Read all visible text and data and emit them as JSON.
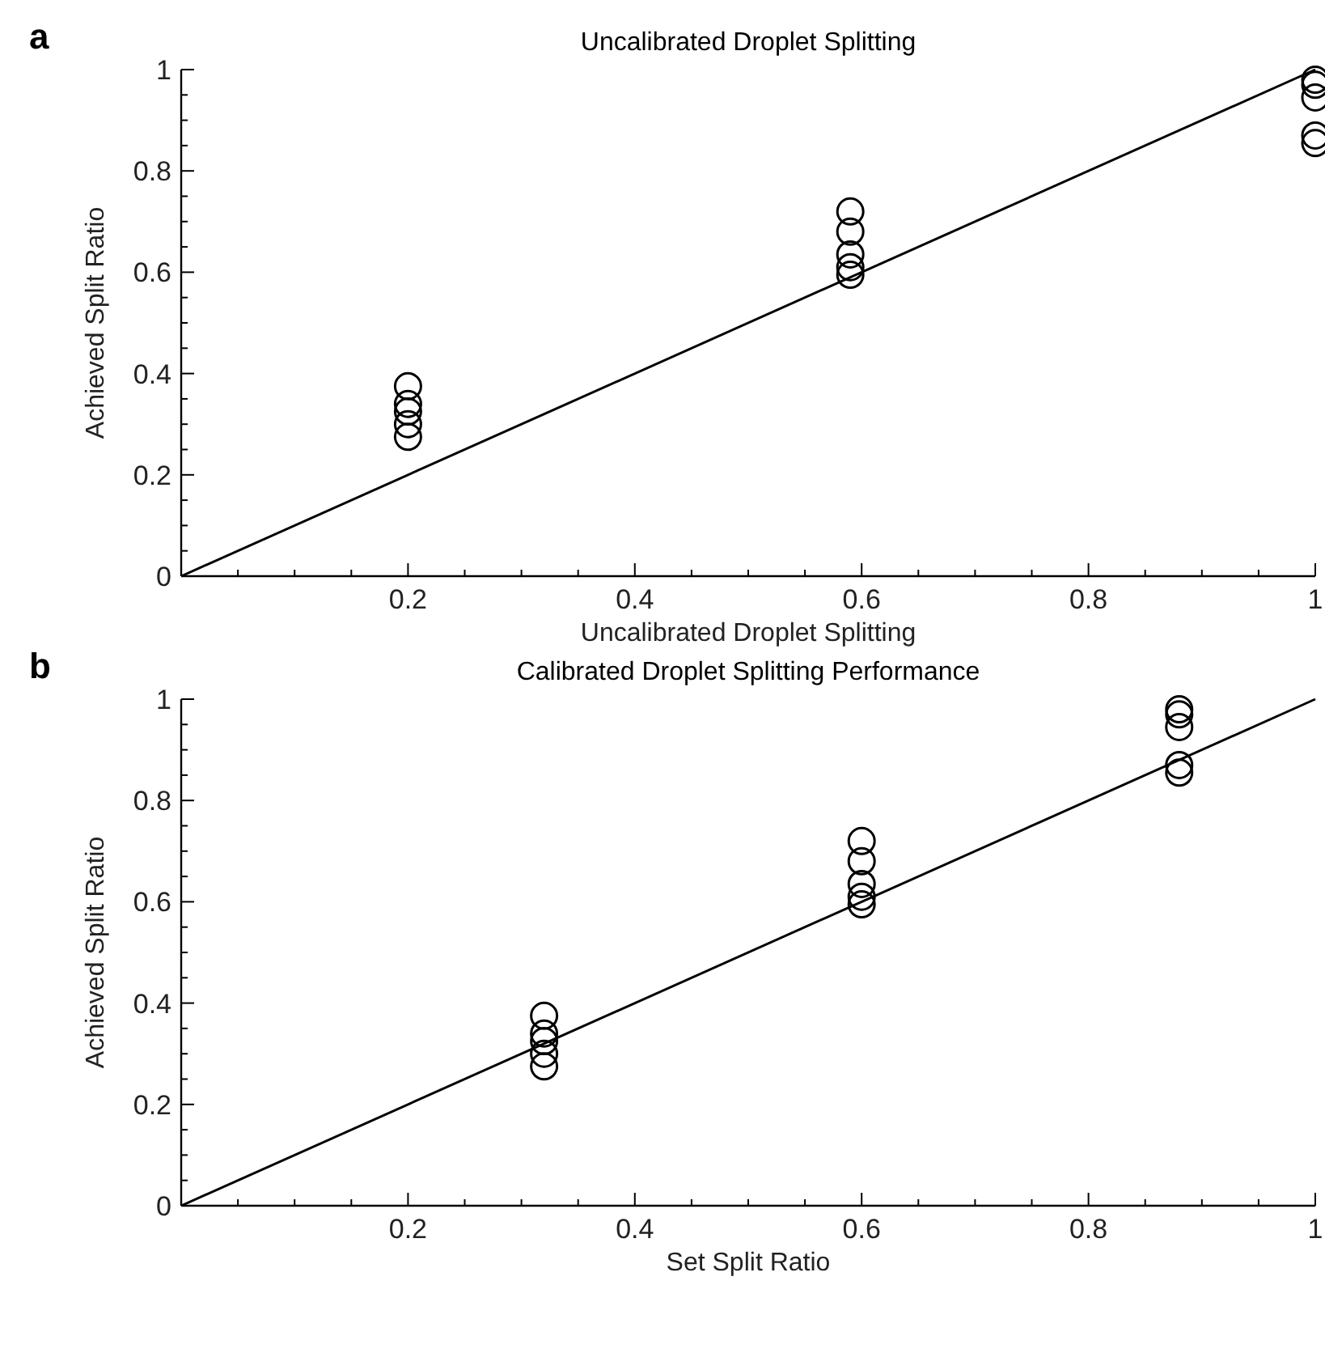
{
  "chart_data": [
    {
      "type": "scatter",
      "title": "Uncalibrated Droplet Splitting",
      "xlabel": "Uncalibrated Droplet Splitting",
      "ylabel": "Achieved Split Ratio",
      "annotations": [
        "a"
      ],
      "grid": false,
      "xlim": [
        0,
        1
      ],
      "ylim": [
        0,
        1
      ],
      "xticks": [
        {
          "value": 0.05,
          "label": null
        },
        {
          "value": 0.1,
          "label": null
        },
        {
          "value": 0.15,
          "label": null
        },
        0.2,
        {
          "value": 0.25,
          "label": null
        },
        {
          "value": 0.3,
          "label": null
        },
        {
          "value": 0.35,
          "label": null
        },
        0.4,
        {
          "value": 0.45,
          "label": null
        },
        {
          "value": 0.5,
          "label": null
        },
        {
          "value": 0.55,
          "label": null
        },
        0.6,
        {
          "value": 0.65,
          "label": null
        },
        {
          "value": 0.7,
          "label": null
        },
        {
          "value": 0.75,
          "label": null
        },
        0.8,
        {
          "value": 0.85,
          "label": null
        },
        {
          "value": 0.9,
          "label": null
        },
        {
          "value": 0.95,
          "label": null
        },
        1
      ],
      "yticks": [
        0,
        {
          "value": 0.05,
          "label": null
        },
        {
          "value": 0.1,
          "label": null
        },
        {
          "value": 0.15,
          "label": null
        },
        0.2,
        {
          "value": 0.25,
          "label": null
        },
        {
          "value": 0.3,
          "label": null
        },
        {
          "value": 0.35,
          "label": null
        },
        0.4,
        {
          "value": 0.45,
          "label": null
        },
        {
          "value": 0.5,
          "label": null
        },
        {
          "value": 0.55,
          "label": null
        },
        0.6,
        {
          "value": 0.65,
          "label": null
        },
        {
          "value": 0.7,
          "label": null
        },
        {
          "value": 0.75,
          "label": null
        },
        0.8,
        {
          "value": 0.85,
          "label": null
        },
        {
          "value": 0.9,
          "label": null
        },
        {
          "value": 0.95,
          "label": null
        },
        1
      ],
      "series": [
        {
          "type": "scatter",
          "marker": "circle",
          "color": "#000000",
          "x": [
            0.2,
            0.2,
            0.2,
            0.2,
            0.2,
            0.59,
            0.59,
            0.59,
            0.59,
            0.59,
            1,
            1,
            1,
            1,
            1
          ],
          "values": [
            0.375,
            0.34,
            0.325,
            0.3,
            0.275,
            0.72,
            0.68,
            0.635,
            0.61,
            0.595,
            0.98,
            0.97,
            0.945,
            0.87,
            0.855
          ]
        },
        {
          "type": "line",
          "color": "#000000",
          "x": [
            0,
            1
          ],
          "values": [
            0,
            1
          ]
        }
      ]
    },
    {
      "type": "scatter",
      "title": "Calibrated Droplet Splitting Performance",
      "xlabel": "Set Split Ratio",
      "ylabel": "Achieved Split Ratio",
      "annotations": [
        "b"
      ],
      "grid": false,
      "xlim": [
        0,
        1
      ],
      "ylim": [
        0,
        1
      ],
      "xticks": [
        {
          "value": 0.05,
          "label": null
        },
        {
          "value": 0.1,
          "label": null
        },
        {
          "value": 0.15,
          "label": null
        },
        0.2,
        {
          "value": 0.25,
          "label": null
        },
        {
          "value": 0.3,
          "label": null
        },
        {
          "value": 0.35,
          "label": null
        },
        0.4,
        {
          "value": 0.45,
          "label": null
        },
        {
          "value": 0.5,
          "label": null
        },
        {
          "value": 0.55,
          "label": null
        },
        0.6,
        {
          "value": 0.65,
          "label": null
        },
        {
          "value": 0.7,
          "label": null
        },
        {
          "value": 0.75,
          "label": null
        },
        0.8,
        {
          "value": 0.85,
          "label": null
        },
        {
          "value": 0.9,
          "label": null
        },
        {
          "value": 0.95,
          "label": null
        },
        1
      ],
      "yticks": [
        0,
        {
          "value": 0.05,
          "label": null
        },
        {
          "value": 0.1,
          "label": null
        },
        {
          "value": 0.15,
          "label": null
        },
        0.2,
        {
          "value": 0.25,
          "label": null
        },
        {
          "value": 0.3,
          "label": null
        },
        {
          "value": 0.35,
          "label": null
        },
        0.4,
        {
          "value": 0.45,
          "label": null
        },
        {
          "value": 0.5,
          "label": null
        },
        {
          "value": 0.55,
          "label": null
        },
        0.6,
        {
          "value": 0.65,
          "label": null
        },
        {
          "value": 0.7,
          "label": null
        },
        {
          "value": 0.75,
          "label": null
        },
        0.8,
        {
          "value": 0.85,
          "label": null
        },
        {
          "value": 0.9,
          "label": null
        },
        {
          "value": 0.95,
          "label": null
        },
        1
      ],
      "series": [
        {
          "type": "scatter",
          "marker": "circle",
          "color": "#000000",
          "x": [
            0.32,
            0.32,
            0.32,
            0.32,
            0.32,
            0.6,
            0.6,
            0.6,
            0.6,
            0.6,
            0.88,
            0.88,
            0.88,
            0.88,
            0.88
          ],
          "values": [
            0.375,
            0.34,
            0.325,
            0.3,
            0.275,
            0.72,
            0.68,
            0.635,
            0.61,
            0.595,
            0.98,
            0.97,
            0.945,
            0.87,
            0.855
          ]
        },
        {
          "type": "line",
          "color": "#000000",
          "x": [
            0,
            1
          ],
          "values": [
            0,
            1
          ]
        }
      ]
    }
  ]
}
